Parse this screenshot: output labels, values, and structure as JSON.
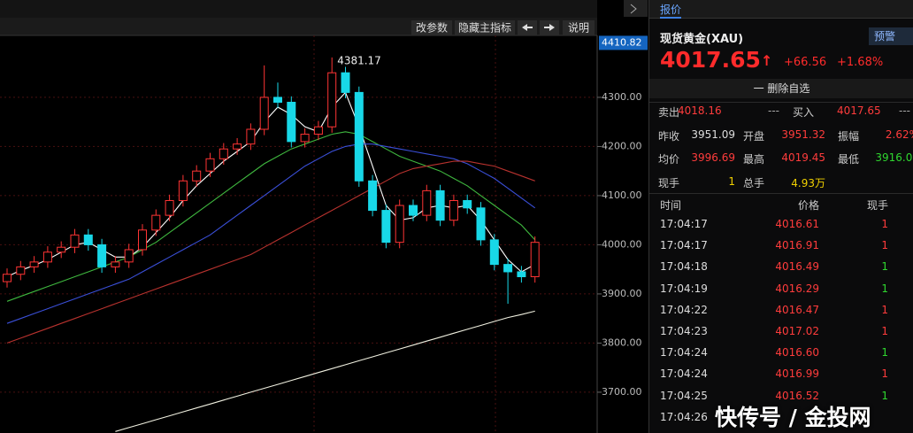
{
  "toolbar": [
    "改参数",
    "隐藏主指标",
    "说明"
  ],
  "chart_data": {
    "type": "candlestick",
    "ylim": [
      3617,
      4426
    ],
    "yticks": [
      {
        "value": 4300,
        "label": "4300.00"
      },
      {
        "value": 4200,
        "label": "4200.00"
      },
      {
        "value": 4100,
        "label": "4100.00"
      },
      {
        "value": 4000,
        "label": "4000.00"
      },
      {
        "value": 3900,
        "label": "3900.00"
      },
      {
        "value": 3800,
        "label": "3800.00"
      },
      {
        "value": 3700,
        "label": "3700.00"
      }
    ],
    "price_tag": 4410.82,
    "max_label": 4381.17,
    "up_color": "#ff3434",
    "down_color": "#18d8e8",
    "candles": {
      "open": [
        3925,
        3940,
        3955,
        3965,
        3985,
        3995,
        4020,
        4000,
        3955,
        3965,
        3990,
        4030,
        4060,
        4090,
        4130,
        4150,
        4175,
        4195,
        4205,
        4235,
        4300,
        4290,
        4210,
        4225,
        4240,
        4350,
        4310,
        4130,
        4070,
        4005,
        4080,
        4060,
        4110,
        4050,
        4090,
        4075,
        4010,
        3960,
        3945,
        3935
      ],
      "high": [
        3952,
        3967,
        3977,
        3997,
        4007,
        4032,
        4032,
        4012,
        3977,
        4002,
        4042,
        4072,
        4102,
        4142,
        4162,
        4187,
        4207,
        4217,
        4247,
        4365,
        4330,
        4302,
        4237,
        4252,
        4381.17,
        4362,
        4322,
        4142,
        4082,
        4092,
        4092,
        4122,
        4122,
        4102,
        4102,
        4087,
        4022,
        3972,
        3957,
        4017
      ],
      "low": [
        3913,
        3928,
        3943,
        3953,
        3973,
        3983,
        3988,
        3943,
        3943,
        3953,
        3978,
        4018,
        4048,
        4078,
        4118,
        4138,
        4163,
        4183,
        4193,
        4223,
        4278,
        4198,
        4198,
        4213,
        4228,
        4298,
        4118,
        4058,
        3993,
        3993,
        4048,
        4048,
        4038,
        4038,
        4063,
        3998,
        3948,
        3880,
        3923,
        3923
      ],
      "close": [
        3940,
        3955,
        3965,
        3985,
        3995,
        4020,
        4000,
        3955,
        3965,
        3990,
        4030,
        4060,
        4090,
        4130,
        4150,
        4175,
        4195,
        4205,
        4235,
        4300,
        4290,
        4210,
        4225,
        4240,
        4350,
        4310,
        4130,
        4070,
        4005,
        4080,
        4060,
        4110,
        4050,
        4090,
        4075,
        4010,
        3960,
        3945,
        3935,
        4005
      ]
    },
    "series": [
      {
        "color": "#ffffff",
        "values": [
          3935,
          3948,
          3958,
          3970,
          3985,
          4000,
          4005,
          3990,
          3975,
          3975,
          3995,
          4025,
          4055,
          4090,
          4120,
          4145,
          4170,
          4190,
          4210,
          4250,
          4280,
          4265,
          4240,
          4230,
          4280,
          4310,
          4240,
          4160,
          4080,
          4050,
          4055,
          4075,
          4080,
          4075,
          4080,
          4050,
          4010,
          3970,
          3945,
          3960
        ]
      },
      {
        "color": "#3fb83f",
        "values": [
          3885,
          3895,
          3905,
          3915,
          3925,
          3935,
          3945,
          3955,
          3965,
          3975,
          3990,
          4005,
          4025,
          4045,
          4065,
          4085,
          4105,
          4125,
          4145,
          4165,
          4180,
          4195,
          4205,
          4215,
          4225,
          4230,
          4225,
          4210,
          4195,
          4180,
          4170,
          4160,
          4150,
          4135,
          4120,
          4100,
          4080,
          4060,
          4040,
          4010
        ]
      },
      {
        "color": "#3a4fd8",
        "values": [
          3840,
          3850,
          3860,
          3870,
          3880,
          3890,
          3900,
          3910,
          3920,
          3930,
          3945,
          3960,
          3975,
          3990,
          4005,
          4020,
          4040,
          4060,
          4080,
          4100,
          4120,
          4140,
          4160,
          4175,
          4190,
          4200,
          4205,
          4205,
          4200,
          4195,
          4190,
          4185,
          4180,
          4175,
          4165,
          4150,
          4135,
          4115,
          4095,
          4075
        ]
      },
      {
        "color": "#b8322e",
        "values": [
          3800,
          3810,
          3820,
          3830,
          3840,
          3850,
          3860,
          3870,
          3880,
          3890,
          3900,
          3910,
          3920,
          3930,
          3940,
          3950,
          3960,
          3970,
          3980,
          3995,
          4010,
          4025,
          4040,
          4055,
          4070,
          4085,
          4100,
          4115,
          4130,
          4145,
          4155,
          4160,
          4165,
          4170,
          4170,
          4165,
          4160,
          4150,
          4140,
          4130
        ]
      },
      {
        "color": "#f0f0e0",
        "values": [
          null,
          null,
          null,
          null,
          null,
          null,
          null,
          null,
          3620,
          3628,
          3636,
          3644,
          3652,
          3660,
          3668,
          3676,
          3684,
          3692,
          3700,
          3708,
          3716,
          3724,
          3732,
          3740,
          3748,
          3756,
          3764,
          3772,
          3780,
          3788,
          3796,
          3804,
          3812,
          3820,
          3828,
          3836,
          3844,
          3852,
          3858,
          3865
        ]
      }
    ]
  },
  "quote": {
    "tab": "报价",
    "name": "现货黄金(XAU)",
    "alert": "预警",
    "price": "4017.65",
    "arrow": "↑",
    "change": "+66.56",
    "change_pct": "+1.68%",
    "remove": "一 删除自选"
  },
  "stats": [
    [
      "卖出",
      "4018.16",
      "---",
      "买入",
      "4017.65",
      "---"
    ],
    [
      "昨收",
      "3951.09",
      "开盘",
      "3951.32",
      "振幅",
      "2.62%"
    ],
    [
      "均价",
      "3996.69",
      "最高",
      "4019.45",
      "最低",
      "3916.03"
    ],
    [
      "现手",
      "1",
      "总手",
      "4.93万"
    ]
  ],
  "ticks": {
    "header": [
      "时间",
      "价格",
      "现手"
    ],
    "rows": [
      [
        "17:04:17",
        "4016.61",
        "1"
      ],
      [
        "17:04:17",
        "4016.91",
        "1"
      ],
      [
        "17:04:18",
        "4016.49",
        "1"
      ],
      [
        "17:04:19",
        "4016.29",
        "1"
      ],
      [
        "17:04:22",
        "4016.47",
        "1"
      ],
      [
        "17:04:23",
        "4017.02",
        "1"
      ],
      [
        "17:04:24",
        "4016.60",
        "1"
      ],
      [
        "17:04:24",
        "4016.99",
        "1"
      ],
      [
        "17:04:25",
        "4016.52",
        "1"
      ],
      [
        "17:04:26",
        null,
        null
      ]
    ]
  },
  "watermark": "快传号 / 金投网"
}
